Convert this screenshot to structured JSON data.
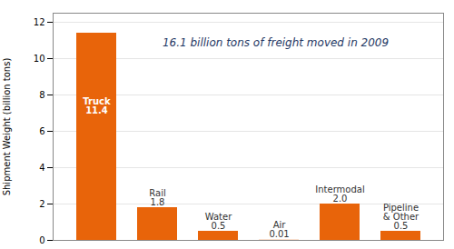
{
  "chart_data": {
    "type": "bar",
    "categories": [
      "Truck",
      "Rail",
      "Water",
      "Air",
      "Intermodal",
      "Pipeline\n& Other"
    ],
    "values": [
      11.4,
      1.8,
      0.5,
      0.01,
      2.0,
      0.5
    ],
    "value_labels": [
      "11.4",
      "1.8",
      "0.5",
      "0.01",
      "2.0",
      "0.5"
    ],
    "data_labels": true,
    "color": "#E8640A",
    "ylabel": "Shipment Weight (billion tons)",
    "annotation": "16.1 billion tons of freight moved in 2009",
    "ylim": [
      0,
      12.5
    ],
    "yticks": [
      0,
      2,
      4,
      6,
      8,
      10,
      12
    ],
    "grid": true,
    "tick_labels": "y"
  }
}
